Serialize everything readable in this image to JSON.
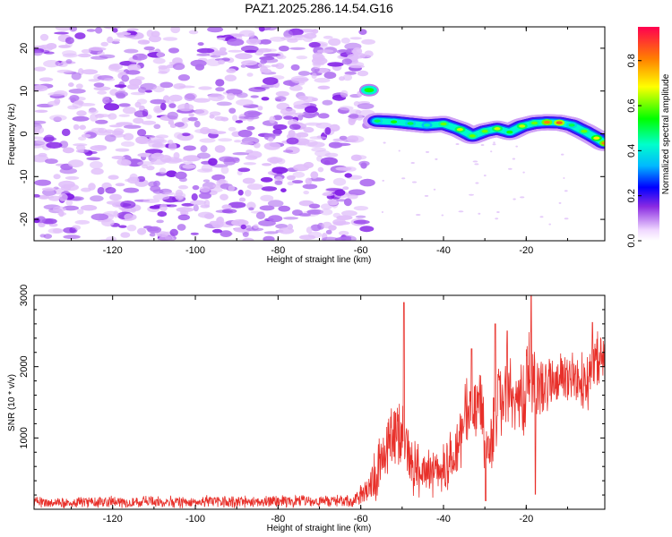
{
  "title": "PAZ1.2025.286.14.54.G16",
  "chart_data": [
    {
      "type": "heatmap",
      "title": "PAZ1.2025.286.14.54.G16",
      "xlabel": "Height of straight line (km)",
      "ylabel": "Frequency (Hz)",
      "xlim": [
        -139,
        -1
      ],
      "ylim": [
        -25,
        25
      ],
      "x_ticks": [
        -120,
        -100,
        -80,
        -60,
        -40,
        -20
      ],
      "y_ticks": [
        -20,
        -10,
        0,
        10,
        20
      ],
      "noise_region_x": [
        -139,
        -58
      ],
      "noise_amplitude_range": [
        0.0,
        0.2
      ],
      "signal_ridge": [
        {
          "x": -58,
          "y": 10.2,
          "amp": 0.55
        },
        {
          "x": -56,
          "y": 3.0,
          "amp": 0.5
        },
        {
          "x": -52,
          "y": 2.8,
          "amp": 0.55
        },
        {
          "x": -48,
          "y": 2.4,
          "amp": 0.5
        },
        {
          "x": -44,
          "y": 2.0,
          "amp": 0.45
        },
        {
          "x": -40,
          "y": 2.3,
          "amp": 0.6
        },
        {
          "x": -36,
          "y": 1.0,
          "amp": 0.65
        },
        {
          "x": -33,
          "y": -0.5,
          "amp": 0.6
        },
        {
          "x": -30,
          "y": 0.6,
          "amp": 0.6
        },
        {
          "x": -27,
          "y": 1.2,
          "amp": 0.65
        },
        {
          "x": -24,
          "y": 0.4,
          "amp": 0.55
        },
        {
          "x": -21,
          "y": 1.8,
          "amp": 0.65
        },
        {
          "x": -18,
          "y": 2.5,
          "amp": 0.6
        },
        {
          "x": -15,
          "y": 2.7,
          "amp": 0.8
        },
        {
          "x": -12,
          "y": 2.6,
          "amp": 0.85
        },
        {
          "x": -9,
          "y": 2.0,
          "amp": 0.5
        },
        {
          "x": -6,
          "y": 0.6,
          "amp": 0.6
        },
        {
          "x": -3,
          "y": -1.0,
          "amp": 0.7
        },
        {
          "x": -1,
          "y": -2.2,
          "amp": 0.8
        }
      ],
      "colorbar": {
        "label": "Normalized spectral amplitude",
        "range": [
          0.0,
          0.95
        ],
        "ticks": [
          0.0,
          0.2,
          0.4,
          0.6,
          0.8
        ]
      }
    },
    {
      "type": "line",
      "xlabel": "Height of straight line (km)",
      "ylabel": "SNR (10 * v/v)",
      "xlim": [
        -139,
        -1
      ],
      "ylim": [
        0,
        3000
      ],
      "x_ticks": [
        -120,
        -100,
        -80,
        -60,
        -40,
        -20
      ],
      "y_ticks": [
        1000,
        2000,
        3000
      ],
      "color": "#e8302a",
      "envelope": [
        {
          "x": -139,
          "mean": 100,
          "spread": 90
        },
        {
          "x": -62,
          "mean": 110,
          "spread": 100
        },
        {
          "x": -59,
          "mean": 250,
          "spread": 250
        },
        {
          "x": -56,
          "mean": 550,
          "spread": 500
        },
        {
          "x": -53,
          "mean": 950,
          "spread": 650
        },
        {
          "x": -50,
          "mean": 1100,
          "spread": 700
        },
        {
          "x": -48,
          "mean": 650,
          "spread": 500
        },
        {
          "x": -45,
          "mean": 500,
          "spread": 400
        },
        {
          "x": -42,
          "mean": 550,
          "spread": 400
        },
        {
          "x": -39,
          "mean": 600,
          "spread": 450
        },
        {
          "x": -36,
          "mean": 900,
          "spread": 500
        },
        {
          "x": -34,
          "mean": 1500,
          "spread": 600
        },
        {
          "x": -31,
          "mean": 1400,
          "spread": 650
        },
        {
          "x": -29,
          "mean": 800,
          "spread": 500
        },
        {
          "x": -27,
          "mean": 1500,
          "spread": 600
        },
        {
          "x": -24,
          "mean": 1800,
          "spread": 600
        },
        {
          "x": -21,
          "mean": 1500,
          "spread": 600
        },
        {
          "x": -19,
          "mean": 1900,
          "spread": 700
        },
        {
          "x": -17,
          "mean": 1700,
          "spread": 500
        },
        {
          "x": -14,
          "mean": 1750,
          "spread": 400
        },
        {
          "x": -11,
          "mean": 1850,
          "spread": 400
        },
        {
          "x": -8,
          "mean": 1750,
          "spread": 450
        },
        {
          "x": -5,
          "mean": 1800,
          "spread": 500
        },
        {
          "x": -3,
          "mean": 2100,
          "spread": 500
        },
        {
          "x": -1,
          "mean": 2200,
          "spread": 300
        }
      ],
      "peaks": [
        {
          "x": -49.6,
          "y": 2900
        },
        {
          "x": -33.2,
          "y": 2250
        },
        {
          "x": -27.5,
          "y": 2600
        },
        {
          "x": -24.6,
          "y": 2500
        },
        {
          "x": -18.8,
          "y": 3000
        },
        {
          "x": -4.0,
          "y": 2620
        }
      ],
      "dips": [
        {
          "x": -29.8,
          "y": 120
        },
        {
          "x": -17.8,
          "y": 210
        }
      ]
    }
  ]
}
